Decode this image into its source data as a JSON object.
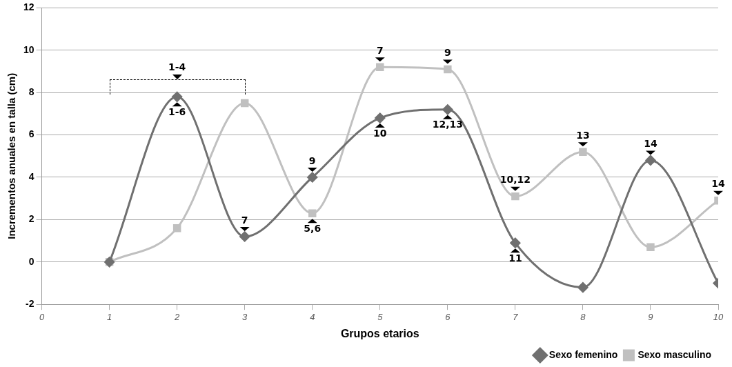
{
  "chart_data": {
    "type": "line",
    "xlabel": "Grupos etarios",
    "ylabel": "Incrementos anuales en talla (cm)",
    "x": [
      1,
      2,
      3,
      4,
      5,
      6,
      7,
      8,
      9,
      10
    ],
    "series": [
      {
        "name": "Sexo femenino",
        "color": "#707070",
        "marker": "diamond",
        "values": [
          0,
          7.8,
          1.2,
          4.0,
          6.8,
          7.2,
          0.9,
          -1.2,
          4.8,
          -1.0
        ]
      },
      {
        "name": "Sexo masculino",
        "color": "#c0c0c0",
        "marker": "square",
        "values": [
          0,
          1.6,
          7.5,
          2.3,
          9.2,
          9.1,
          3.1,
          5.2,
          0.7,
          2.9
        ]
      }
    ],
    "xlim": [
      0,
      10
    ],
    "xticks": [
      0,
      1,
      2,
      3,
      4,
      5,
      6,
      7,
      8,
      9,
      10
    ],
    "ylim": [
      -2,
      12
    ],
    "yticks": [
      -2,
      0,
      2,
      4,
      6,
      8,
      10,
      12
    ],
    "grid": "y",
    "legend": "bottom right",
    "annotations": [
      {
        "text": "1-4",
        "x": 2,
        "y": 7.8
      },
      {
        "text": "1-6",
        "x": 2,
        "y": 7.8
      },
      {
        "text": "7",
        "x": 3,
        "y": 1.2
      },
      {
        "text": "9",
        "x": 4,
        "y": 4.0
      },
      {
        "text": "5,6",
        "x": 4,
        "y": 2.3
      },
      {
        "text": "7",
        "x": 5,
        "y": 9.2
      },
      {
        "text": "10",
        "x": 5,
        "y": 6.8
      },
      {
        "text": "9",
        "x": 6,
        "y": 9.1
      },
      {
        "text": "12,13",
        "x": 6,
        "y": 7.2
      },
      {
        "text": "10,12",
        "x": 7,
        "y": 3.1
      },
      {
        "text": "11",
        "x": 7,
        "y": 0.9
      },
      {
        "text": "13",
        "x": 8,
        "y": 5.2
      },
      {
        "text": "14",
        "x": 9,
        "y": 4.8
      },
      {
        "text": "14",
        "x": 10,
        "y": 2.9
      }
    ]
  }
}
